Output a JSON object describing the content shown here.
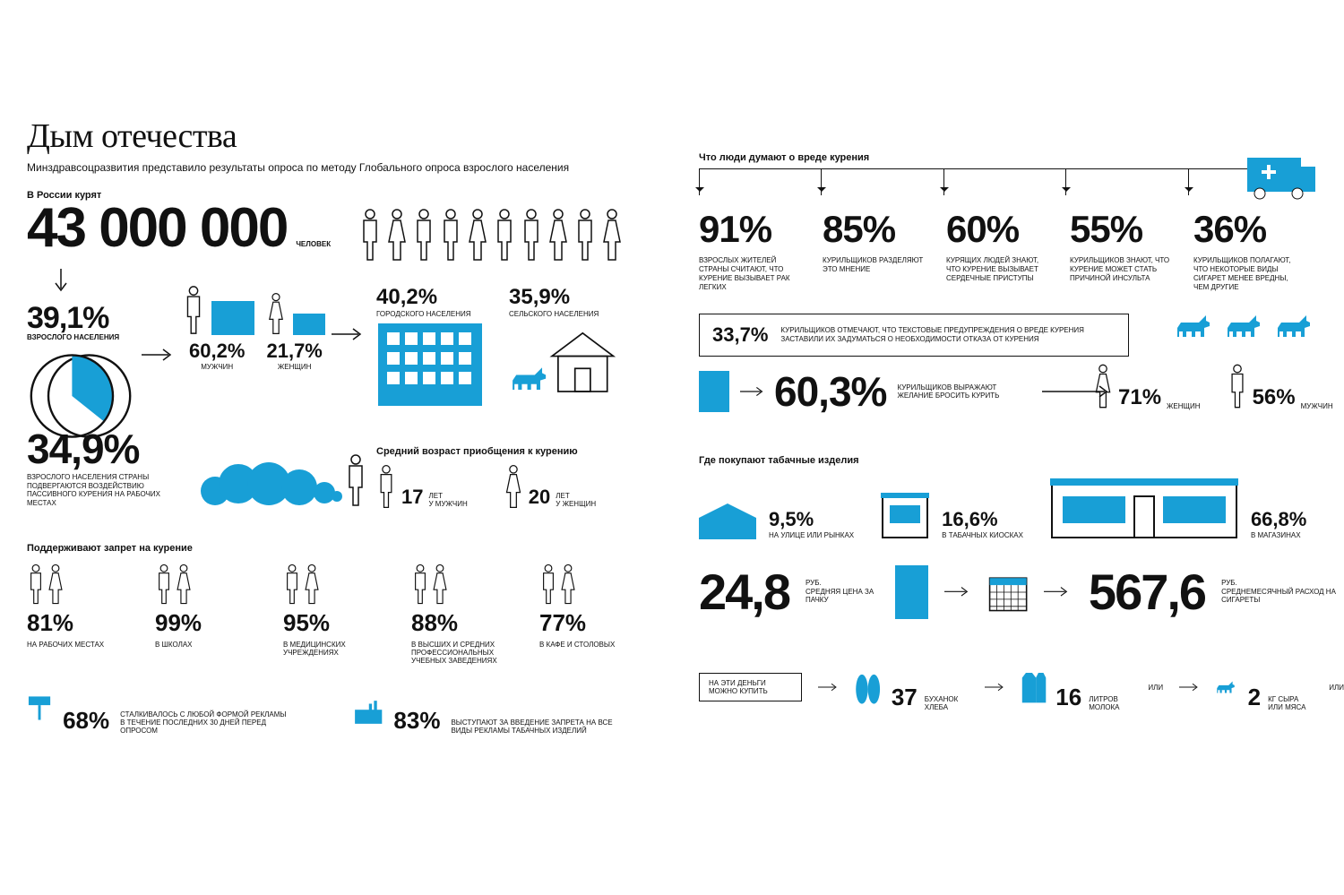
{
  "colors": {
    "blue": "#189fd6",
    "ink": "#111111",
    "bg": "#ffffff"
  },
  "title": "Дым отечества",
  "subtitle": "Минздравсоцразвития представило результаты опроса по методу Глобального опроса взрослого населения",
  "smokers_header": "В России курят",
  "smokers_total": "43 000 000",
  "smokers_unit": "ЧЕЛОВЕК",
  "population_pct": {
    "value": "39,1%",
    "label": "ВЗРОСЛОГО НАСЕЛЕНИЯ",
    "pie_start_deg": 0,
    "pie_end_deg": 141
  },
  "gender": {
    "men": {
      "value": "60,2%",
      "label": "МУЖЧИН"
    },
    "women": {
      "value": "21,7%",
      "label": "ЖЕНЩИН"
    }
  },
  "residence": {
    "urban": {
      "value": "40,2%",
      "label": "ГОРОДСКОГО НАСЕЛЕНИЯ"
    },
    "rural": {
      "value": "35,9%",
      "label": "СЕЛЬСКОГО НАСЕЛЕНИЯ"
    }
  },
  "passive": {
    "value": "34,9%",
    "label": "ВЗРОСЛОГО НАСЕЛЕНИЯ СТРАНЫ ПОДВЕРГАЮТСЯ ВОЗДЕЙСТВИЮ ПАССИВНОГО КУРЕНИЯ НА РАБОЧИХ МЕСТАХ"
  },
  "age_start": {
    "title": "Средний возраст приобщения к курению",
    "men": {
      "value": "17",
      "unit": "ЛЕТ",
      "label": "У МУЖЧИН"
    },
    "women": {
      "value": "20",
      "unit": "ЛЕТ",
      "label": "У ЖЕНЩИН"
    }
  },
  "ban": {
    "title": "Поддерживают запрет на курение",
    "items": [
      {
        "value": "81%",
        "label": "НА РАБОЧИХ МЕСТАХ"
      },
      {
        "value": "99%",
        "label": "В ШКОЛАХ"
      },
      {
        "value": "95%",
        "label": "В МЕДИЦИНСКИХ УЧРЕЖДЕНИЯХ"
      },
      {
        "value": "88%",
        "label": "В ВЫСШИХ И СРЕДНИХ ПРОФЕССИОНАЛЬНЫХ УЧЕБНЫХ ЗАВЕДЕНИЯХ"
      },
      {
        "value": "77%",
        "label": "В КАФЕ И СТОЛОВЫХ"
      }
    ]
  },
  "ad": {
    "seen": {
      "value": "68%",
      "label": "СТАЛКИВАЛОСЬ С ЛЮБОЙ ФОРМОЙ РЕКЛАМЫ В ТЕЧЕНИЕ ПОСЛЕДНИХ 30 ДНЕЙ ПЕРЕД ОПРОСОМ"
    },
    "ban": {
      "value": "83%",
      "label": "ВЫСТУПАЮТ ЗА ВВЕДЕНИЕ ЗАПРЕТА НА ВСЕ ВИДЫ РЕКЛАМЫ ТАБАЧНЫХ ИЗДЕЛИЙ"
    }
  },
  "opinion": {
    "title": "Что люди думают о вреде курения",
    "items": [
      {
        "value": "91%",
        "label": "ВЗРОСЛЫХ ЖИТЕЛЕЙ СТРАНЫ СЧИТАЮТ, ЧТО КУРЕНИЕ ВЫЗЫВАЕТ РАК ЛЕГКИХ"
      },
      {
        "value": "85%",
        "label": "КУРИЛЬЩИКОВ РАЗДЕЛЯЮТ ЭТО МНЕНИЕ"
      },
      {
        "value": "60%",
        "label": "КУРЯЩИХ ЛЮДЕЙ ЗНАЮТ, ЧТО КУРЕНИЕ ВЫЗЫВАЕТ СЕРДЕЧНЫЕ ПРИСТУПЫ"
      },
      {
        "value": "55%",
        "label": "КУРИЛЬЩИКОВ ЗНАЮТ, ЧТО КУРЕНИЕ МОЖЕТ СТАТЬ ПРИЧИНОЙ ИНСУЛЬТА"
      },
      {
        "value": "36%",
        "label": "КУРИЛЬЩИКОВ ПОЛАГАЮТ, ЧТО НЕКОТОРЫЕ ВИДЫ СИГАРЕТ МЕНЕЕ ВРЕДНЫ, ЧЕМ ДРУГИЕ"
      }
    ]
  },
  "warning": {
    "value": "33,7%",
    "label": "КУРИЛЬЩИКОВ ОТМЕЧАЮТ, ЧТО ТЕКСТОВЫЕ ПРЕДУПРЕЖДЕНИЯ О ВРЕДЕ КУРЕНИЯ ЗАСТАВИЛИ ИХ ЗАДУМАТЬСЯ О НЕОБХОДИМОСТИ ОТКАЗА ОТ КУРЕНИЯ"
  },
  "quit": {
    "value": "60,3%",
    "label": "КУРИЛЬЩИКОВ ВЫРАЖАЮТ ЖЕЛАНИЕ БРОСИТЬ КУРИТЬ",
    "women": {
      "value": "71%",
      "label": "ЖЕНЩИН"
    },
    "men": {
      "value": "56%",
      "label": "МУЖЧИН"
    }
  },
  "buy": {
    "title": "Где покупают табачные изделия",
    "street": {
      "value": "9,5%",
      "label": "НА УЛИЦЕ ИЛИ РЫНКАХ"
    },
    "kiosk": {
      "value": "16,6%",
      "label": "В ТАБАЧНЫХ КИОСКАХ"
    },
    "store": {
      "value": "66,8%",
      "label": "В МАГАЗИНАХ"
    }
  },
  "price": {
    "pack": {
      "value": "24,8",
      "unit": "РУБ.",
      "label": "СРЕДНЯЯ ЦЕНА ЗА ПАЧКУ"
    },
    "monthly": {
      "value": "567,6",
      "unit": "РУБ.",
      "label": "СРЕДНЕМЕСЯЧНЫЙ РАСХОД НА СИГАРЕТЫ"
    }
  },
  "equiv": {
    "title": "НА ЭТИ ДЕНЬГИ МОЖНО КУПИТЬ",
    "or": "ИЛИ",
    "bread": {
      "value": "37",
      "label": "БУХАНОК ХЛЕБА"
    },
    "milk": {
      "value": "16",
      "label": "ЛИТРОВ МОЛОКА"
    },
    "meat": {
      "value": "2",
      "label": "КГ СЫРА ИЛИ МЯСА"
    }
  }
}
